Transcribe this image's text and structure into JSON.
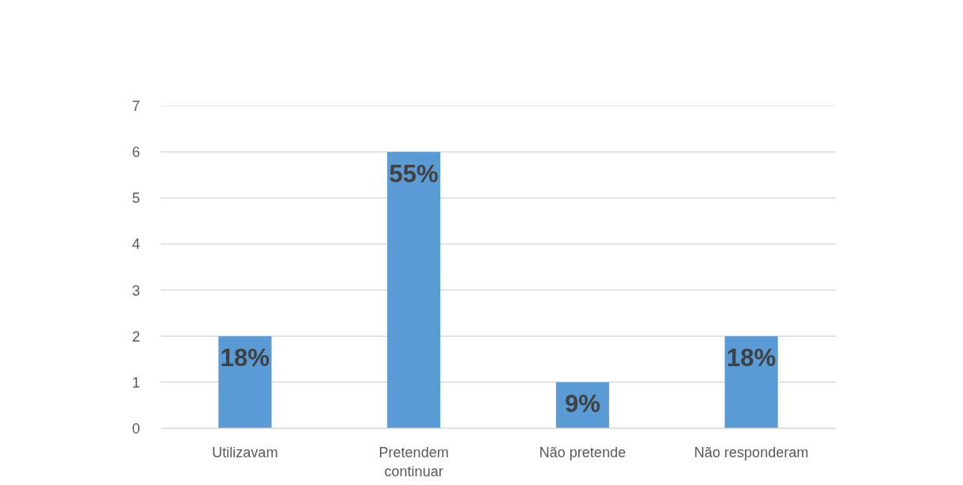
{
  "chart_data": {
    "type": "bar",
    "categories": [
      "Utilizavam",
      "Pretendem continuar",
      "Não pretende",
      "Não responderam"
    ],
    "values": [
      2,
      6,
      1,
      2
    ],
    "color": "#5b9bd5",
    "annotations": [
      {
        "text": "18%",
        "x": "Utilizavam",
        "y": 2
      },
      {
        "text": "55%",
        "x": "Pretendem continuar",
        "y": 6
      },
      {
        "text": "9%",
        "x": "Não pretende",
        "y": 1
      },
      {
        "text": "18%",
        "x": "Não responderam",
        "y": 2
      }
    ],
    "ylim": [
      0,
      7
    ],
    "yticks": [
      0,
      1,
      2,
      3,
      4,
      5,
      6,
      7
    ],
    "grid": "y"
  }
}
